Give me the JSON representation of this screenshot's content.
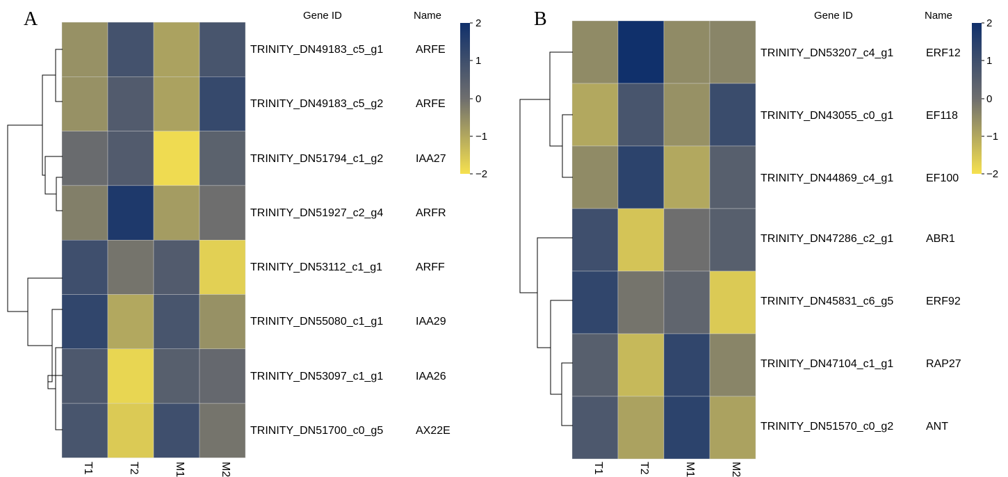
{
  "chart_data": [
    {
      "type": "heatmap",
      "panel_label": "A",
      "header_gene_id": "Gene ID",
      "header_name": "Name",
      "columns": [
        "T1",
        "T2",
        "M1",
        "M2"
      ],
      "rows": [
        {
          "gene_id": "TRINITY_DN49183_c5_g1",
          "name": "ARFE",
          "values": [
            -0.6,
            0.9,
            -0.9,
            0.8
          ]
        },
        {
          "gene_id": "TRINITY_DN49183_c5_g2",
          "name": "ARFE",
          "values": [
            -0.6,
            0.6,
            -0.9,
            1.2
          ]
        },
        {
          "gene_id": "TRINITY_DN51794_c1_g2",
          "name": "IAA27",
          "values": [
            0.1,
            0.6,
            -1.9,
            0.4
          ]
        },
        {
          "gene_id": "TRINITY_DN51927_c2_g4",
          "name": "ARFR",
          "values": [
            -0.3,
            1.7,
            -0.8,
            0.0
          ]
        },
        {
          "gene_id": "TRINITY_DN53112_c1_g1",
          "name": "ARFF",
          "values": [
            1.0,
            -0.1,
            0.6,
            -1.7
          ]
        },
        {
          "gene_id": "TRINITY_DN55080_c1_g1",
          "name": "IAA29",
          "values": [
            1.3,
            -1.0,
            0.8,
            -0.6
          ]
        },
        {
          "gene_id": "TRINITY_DN53097_c1_g1",
          "name": "IAA26",
          "values": [
            0.7,
            -1.8,
            0.5,
            0.2
          ]
        },
        {
          "gene_id": "TRINITY_DN51700_c0_g5",
          "name": "AX22E",
          "values": [
            0.8,
            -1.6,
            1.0,
            -0.1
          ]
        }
      ],
      "legend": {
        "min": -2,
        "max": 2,
        "ticks": [
          2,
          1,
          0,
          -1,
          -2
        ],
        "colors": {
          "low": "#F6E14F",
          "mid": "#6E6E6E",
          "high": "#10306B"
        }
      }
    },
    {
      "type": "heatmap",
      "panel_label": "B",
      "header_gene_id": "Gene ID",
      "header_name": "Name",
      "columns": [
        "T1",
        "T2",
        "M1",
        "M2"
      ],
      "rows": [
        {
          "gene_id": "TRINITY_DN53207_c4_g1",
          "name": "ERF12",
          "values": [
            -0.5,
            2.0,
            -0.5,
            -0.4
          ]
        },
        {
          "gene_id": "TRINITY_DN43055_c0_g1",
          "name": "EF118",
          "values": [
            -1.0,
            0.8,
            -0.6,
            1.1
          ]
        },
        {
          "gene_id": "TRINITY_DN44869_c4_g1",
          "name": "EF100",
          "values": [
            -0.5,
            1.4,
            -1.0,
            0.5
          ]
        },
        {
          "gene_id": "TRINITY_DN47286_c2_g1",
          "name": "ABR1",
          "values": [
            1.0,
            -1.5,
            0.0,
            0.5
          ]
        },
        {
          "gene_id": "TRINITY_DN45831_c6_g5",
          "name": "ERF92",
          "values": [
            1.3,
            -0.1,
            0.3,
            -1.6
          ]
        },
        {
          "gene_id": "TRINITY_DN47104_c1_g1",
          "name": "RAP27",
          "values": [
            0.5,
            -1.3,
            1.3,
            -0.4
          ]
        },
        {
          "gene_id": "TRINITY_DN51570_c0_g2",
          "name": "ANT",
          "values": [
            0.7,
            -0.9,
            1.4,
            -0.9
          ]
        }
      ],
      "legend": {
        "min": -2,
        "max": 2,
        "ticks": [
          2,
          1,
          0,
          -1,
          -2
        ],
        "colors": {
          "low": "#F6E14F",
          "mid": "#6E6E6E",
          "high": "#10306B"
        }
      }
    }
  ]
}
